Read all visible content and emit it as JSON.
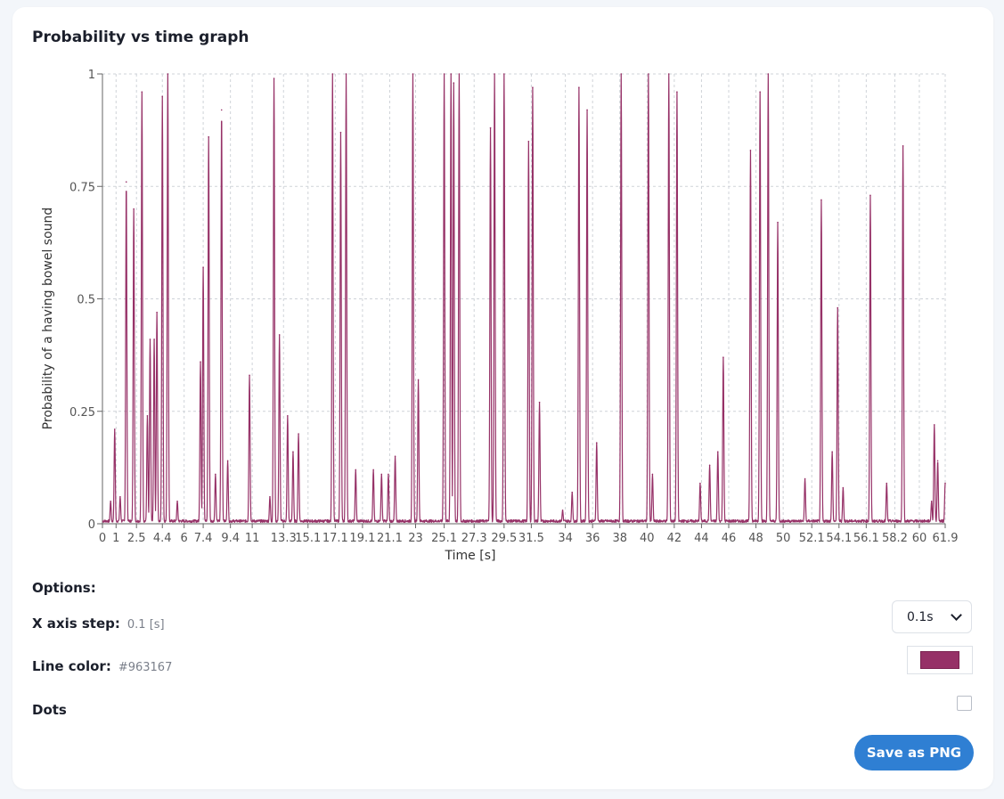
{
  "card": {
    "title": "Probability vs time graph"
  },
  "chart_data": {
    "type": "line",
    "xlabel": "Time [s]",
    "ylabel": "Probability of a having bowel sound",
    "xlim": [
      0,
      61.9
    ],
    "ylim": [
      0,
      1
    ],
    "x_ticks": [
      "0",
      "1",
      "2.5",
      "4.4",
      "6",
      "7.4",
      "9.4",
      "11",
      "13.3",
      "15.1",
      "17.1",
      "19.1",
      "21.1",
      "23",
      "25.1",
      "27.3",
      "29.5",
      "31.5",
      "34",
      "36",
      "38",
      "40",
      "42",
      "44",
      "46",
      "48",
      "50",
      "52.1",
      "54.1",
      "56.1",
      "58.2",
      "60",
      "61.9"
    ],
    "y_ticks": [
      "0",
      "0.25",
      "0.5",
      "0.75",
      "1"
    ],
    "grid": true,
    "line_color": "#963167",
    "peaks": [
      [
        0.6,
        0.05
      ],
      [
        0.9,
        0.21
      ],
      [
        1.3,
        0.06
      ],
      [
        1.75,
        0.76
      ],
      [
        2.3,
        0.7
      ],
      [
        2.9,
        0.96
      ],
      [
        3.3,
        0.24
      ],
      [
        3.5,
        0.41
      ],
      [
        3.8,
        0.41
      ],
      [
        4.0,
        0.47
      ],
      [
        4.4,
        0.95
      ],
      [
        4.8,
        1.0
      ],
      [
        5.5,
        0.05
      ],
      [
        7.2,
        0.36
      ],
      [
        7.4,
        0.57
      ],
      [
        7.8,
        0.86
      ],
      [
        8.3,
        0.11
      ],
      [
        8.75,
        0.92
      ],
      [
        9.2,
        0.14
      ],
      [
        10.8,
        0.33
      ],
      [
        12.3,
        0.06
      ],
      [
        12.6,
        0.99
      ],
      [
        13.0,
        0.42
      ],
      [
        13.6,
        0.24
      ],
      [
        14.0,
        0.16
      ],
      [
        14.4,
        0.2
      ],
      [
        16.9,
        1.0
      ],
      [
        17.5,
        0.87
      ],
      [
        17.9,
        1.0
      ],
      [
        18.6,
        0.12
      ],
      [
        19.9,
        0.12
      ],
      [
        20.5,
        0.11
      ],
      [
        21.0,
        0.11
      ],
      [
        21.5,
        0.15
      ],
      [
        22.8,
        1.0
      ],
      [
        23.2,
        0.32
      ],
      [
        25.1,
        1.0
      ],
      [
        25.6,
        1.0
      ],
      [
        25.8,
        0.98
      ],
      [
        26.2,
        1.0
      ],
      [
        28.5,
        0.88
      ],
      [
        28.8,
        1.0
      ],
      [
        29.5,
        1.0
      ],
      [
        31.3,
        0.85
      ],
      [
        31.6,
        0.97
      ],
      [
        32.1,
        0.27
      ],
      [
        33.8,
        0.03
      ],
      [
        34.5,
        0.07
      ],
      [
        35.0,
        0.97
      ],
      [
        35.6,
        0.92
      ],
      [
        36.3,
        0.18
      ],
      [
        38.1,
        1.0
      ],
      [
        40.1,
        1.0
      ],
      [
        40.4,
        0.11
      ],
      [
        41.6,
        1.0
      ],
      [
        42.2,
        0.96
      ],
      [
        43.9,
        0.09
      ],
      [
        44.6,
        0.13
      ],
      [
        45.2,
        0.16
      ],
      [
        45.6,
        0.37
      ],
      [
        47.6,
        0.83
      ],
      [
        48.3,
        0.96
      ],
      [
        48.9,
        1.0
      ],
      [
        49.6,
        0.67
      ],
      [
        51.6,
        0.1
      ],
      [
        52.8,
        0.72
      ],
      [
        53.6,
        0.16
      ],
      [
        54.0,
        0.48
      ],
      [
        54.4,
        0.08
      ],
      [
        56.4,
        0.73
      ],
      [
        57.6,
        0.09
      ],
      [
        58.8,
        0.84
      ],
      [
        60.9,
        0.05
      ],
      [
        61.1,
        0.22
      ],
      [
        61.35,
        0.14
      ],
      [
        61.9,
        0.09
      ]
    ]
  },
  "options": {
    "title": "Options:",
    "x_step_label": "X axis step:",
    "x_step_value": "0.1 [s]",
    "x_step_selected": "0.1s",
    "line_color_label": "Line color:",
    "line_color_value": "#963167",
    "dots_label": "Dots",
    "save_label": "Save as PNG"
  }
}
